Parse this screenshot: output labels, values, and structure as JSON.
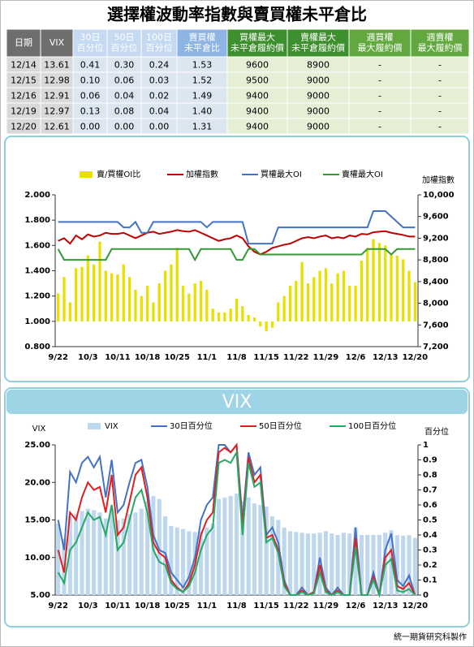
{
  "title": "選擇權波動率指數與賣買權未平倉比",
  "table": {
    "columns": [
      [
        "日期"
      ],
      [
        "VIX"
      ],
      [
        "30日",
        "百分位"
      ],
      [
        "50日",
        "百分位"
      ],
      [
        "100日",
        "百分位"
      ],
      [
        "賣買權",
        "未平倉比"
      ],
      [
        "買權最大",
        "未平倉履約價"
      ],
      [
        "賣權最大",
        "未平倉履約價"
      ],
      [
        "週買權",
        "最大履約價"
      ],
      [
        "週賣權",
        "最大履約價"
      ]
    ],
    "rows": [
      [
        "12/14",
        "13.61",
        "0.41",
        "0.30",
        "0.24",
        "1.53",
        "9600",
        "8900",
        "-",
        "-"
      ],
      [
        "12/15",
        "12.98",
        "0.10",
        "0.06",
        "0.03",
        "1.52",
        "9500",
        "9000",
        "-",
        "-"
      ],
      [
        "12/16",
        "12.91",
        "0.06",
        "0.04",
        "0.02",
        "1.49",
        "9400",
        "9000",
        "-",
        "-"
      ],
      [
        "12/19",
        "12.97",
        "0.13",
        "0.08",
        "0.04",
        "1.40",
        "9400",
        "9000",
        "-",
        "-"
      ],
      [
        "12/20",
        "12.61",
        "0.00",
        "0.00",
        "0.00",
        "1.31",
        "9400",
        "9000",
        "-",
        "-"
      ]
    ]
  },
  "chart_data": [
    {
      "type": "bar_line",
      "y2label": "加權指數",
      "categories": [
        "9/22",
        null,
        null,
        null,
        null,
        "10/3",
        null,
        null,
        null,
        null,
        "10/11",
        null,
        null,
        null,
        null,
        "10/18",
        null,
        null,
        null,
        null,
        "10/25",
        null,
        null,
        null,
        null,
        "11/1",
        null,
        null,
        null,
        null,
        "11/8",
        null,
        null,
        null,
        null,
        "11/15",
        null,
        null,
        null,
        null,
        "11/22",
        null,
        null,
        null,
        null,
        "11/29",
        null,
        null,
        null,
        null,
        "12/6",
        null,
        null,
        null,
        null,
        "12/13",
        null,
        null,
        null,
        null,
        "12/20"
      ],
      "bar_baseline": 1,
      "series": [
        {
          "name": "賣/買權OI比",
          "type": "bar",
          "color": "#e8e000",
          "values": [
            1.22,
            1.35,
            1.15,
            1.42,
            1.43,
            1.52,
            1.45,
            1.63,
            1.4,
            1.38,
            1.37,
            1.45,
            1.35,
            1.25,
            1.2,
            1.28,
            1.15,
            1.3,
            1.4,
            1.45,
            1.58,
            1.28,
            1.22,
            1.3,
            1.32,
            1.25,
            1.1,
            1.07,
            1.07,
            1.1,
            1.18,
            1.12,
            1.05,
            1.03,
            0.96,
            0.92,
            0.95,
            1.15,
            1.2,
            1.28,
            1.32,
            1.47,
            1.3,
            1.35,
            1.4,
            1.42,
            1.3,
            1.38,
            1.4,
            1.28,
            1.28,
            1.48,
            1.58,
            1.65,
            1.62,
            1.6,
            1.53,
            1.52,
            1.49,
            1.4,
            1.31
          ]
        },
        {
          "name": "加權指數",
          "type": "line",
          "axis": "y2",
          "color": "#c00000",
          "values": [
            9150,
            9200,
            9100,
            9250,
            9180,
            9270,
            9230,
            9250,
            9300,
            9280,
            9280,
            9300,
            9250,
            9200,
            9250,
            9300,
            9320,
            9280,
            9300,
            9320,
            9350,
            9330,
            9320,
            9350,
            9300,
            9250,
            9200,
            9150,
            9180,
            9200,
            9250,
            9200,
            9050,
            8950,
            8900,
            8950,
            9020,
            9050,
            9080,
            9100,
            9150,
            9200,
            9220,
            9200,
            9230,
            9250,
            9200,
            9220,
            9200,
            9250,
            9230,
            9280,
            9270,
            9310,
            9320,
            9330,
            9300,
            9280,
            9260,
            9230,
            9230
          ]
        },
        {
          "name": "買權最大OI",
          "type": "line",
          "axis": "y2",
          "color": "#4472c4",
          "values": [
            9500,
            9500,
            9500,
            9500,
            9500,
            9500,
            9500,
            9500,
            9500,
            9500,
            9500,
            9400,
            9400,
            9500,
            9300,
            9300,
            9500,
            9500,
            9500,
            9500,
            9500,
            9500,
            9500,
            9500,
            9500,
            9400,
            9500,
            9500,
            9500,
            9500,
            9500,
            9500,
            9100,
            9100,
            9100,
            9100,
            9100,
            9400,
            9400,
            9400,
            9400,
            9400,
            9400,
            9400,
            9400,
            9400,
            9400,
            9400,
            9400,
            9400,
            9400,
            9400,
            9400,
            9700,
            9700,
            9700,
            9600,
            9500,
            9400,
            9400,
            9400
          ]
        },
        {
          "name": "賣權最大OI",
          "type": "line",
          "axis": "y2",
          "color": "#339933",
          "values": [
            9000,
            8800,
            8800,
            8800,
            8800,
            8800,
            8800,
            8800,
            8800,
            9000,
            9000,
            9000,
            9000,
            9000,
            9000,
            9000,
            9000,
            9000,
            9000,
            9000,
            9000,
            9000,
            9000,
            8800,
            9000,
            9000,
            9000,
            9000,
            9000,
            9000,
            8800,
            8800,
            9000,
            9000,
            8900,
            8900,
            8900,
            8900,
            8900,
            8900,
            8900,
            8900,
            8900,
            8900,
            8900,
            8900,
            8900,
            8900,
            8900,
            8900,
            8900,
            8900,
            9000,
            9000,
            9000,
            9000,
            8900,
            9000,
            9000,
            9000,
            9000
          ]
        }
      ],
      "ylim": [
        0.8,
        2.0
      ],
      "yticks": [
        {
          "value": 0.8,
          "label": "0.800"
        },
        {
          "value": 1.0,
          "label": "1.000"
        },
        {
          "value": 1.2,
          "label": "1.200"
        },
        {
          "value": 1.4,
          "label": "1.400"
        },
        {
          "value": 1.6,
          "label": "1.600"
        },
        {
          "value": 1.8,
          "label": "1.800"
        },
        {
          "value": 2.0,
          "label": "2.000"
        }
      ],
      "y2lim": [
        7200,
        10000
      ],
      "y2ticks": [
        {
          "value": 7200,
          "label": "7,200"
        },
        {
          "value": 7600,
          "label": "7,600"
        },
        {
          "value": 8000,
          "label": "8,000"
        },
        {
          "value": 8400,
          "label": "8,400"
        },
        {
          "value": 8800,
          "label": "8,800"
        },
        {
          "value": 9200,
          "label": "9,200"
        },
        {
          "value": 9600,
          "label": "9,600"
        },
        {
          "value": 10000,
          "label": "10,000"
        }
      ]
    },
    {
      "type": "bar_line",
      "title": "VIX",
      "ylabel": "VIX",
      "y2label": "百分位",
      "categories": [
        "9/22",
        null,
        null,
        null,
        null,
        "10/3",
        null,
        null,
        null,
        null,
        "10/11",
        null,
        null,
        null,
        null,
        "10/18",
        null,
        null,
        null,
        null,
        "10/25",
        null,
        null,
        null,
        null,
        "11/1",
        null,
        null,
        null,
        null,
        "11/8",
        null,
        null,
        null,
        null,
        "11/15",
        null,
        null,
        null,
        null,
        "11/22",
        null,
        null,
        null,
        null,
        "11/29",
        null,
        null,
        null,
        null,
        "12/6",
        null,
        null,
        null,
        null,
        "12/13",
        null,
        null,
        null,
        null,
        "12/20"
      ],
      "bar_baseline": 5,
      "series": [
        {
          "name": "VIX",
          "type": "bar",
          "color": "#bdd7ee",
          "values": [
            14.5,
            12.5,
            15.5,
            15.8,
            16.2,
            16.5,
            16.3,
            16.0,
            15.2,
            16.5,
            15.0,
            15.2,
            15.8,
            16.0,
            16.5,
            17.5,
            18.2,
            17.8,
            15.5,
            14.2,
            14.0,
            13.8,
            13.5,
            13.4,
            13.5,
            14.0,
            14.5,
            17.8,
            18.0,
            18.2,
            18.5,
            17.5,
            18.0,
            17.2,
            17.0,
            16.8,
            15.5,
            15.0,
            14.0,
            13.5,
            13.4,
            13.3,
            13.2,
            13.2,
            13.3,
            13.5,
            13.2,
            13.0,
            13.3,
            13.2,
            14.0,
            13.0,
            13.0,
            13.0,
            13.0,
            13.3,
            13.61,
            12.98,
            12.91,
            12.97,
            12.61
          ]
        },
        {
          "name": "30日百分位",
          "type": "line",
          "axis": "y2",
          "color": "#4472c4",
          "values": [
            0.5,
            0.3,
            0.82,
            0.75,
            0.88,
            0.92,
            0.85,
            0.92,
            0.65,
            0.9,
            0.55,
            0.6,
            0.75,
            0.88,
            0.9,
            0.72,
            0.4,
            0.3,
            0.28,
            0.15,
            0.1,
            0.05,
            0.12,
            0.25,
            0.5,
            0.6,
            0.65,
            1.0,
            1.0,
            0.95,
            1.0,
            0.5,
            0.95,
            0.8,
            0.85,
            0.4,
            0.45,
            0.35,
            0.1,
            0.0,
            0.0,
            0.05,
            0.0,
            0.02,
            0.25,
            0.05,
            0.0,
            0.05,
            0.0,
            0.0,
            0.45,
            0.0,
            0.0,
            0.15,
            0.0,
            0.3,
            0.41,
            0.1,
            0.06,
            0.13,
            0.0
          ]
        },
        {
          "name": "50日百分位",
          "type": "line",
          "axis": "y2",
          "color": "#e02020",
          "values": [
            0.3,
            0.15,
            0.55,
            0.5,
            0.65,
            0.75,
            0.7,
            0.72,
            0.55,
            0.8,
            0.4,
            0.45,
            0.62,
            0.8,
            0.85,
            0.65,
            0.35,
            0.28,
            0.25,
            0.1,
            0.05,
            0.02,
            0.08,
            0.2,
            0.4,
            0.5,
            0.55,
            0.95,
            0.98,
            0.95,
            1.0,
            0.45,
            0.92,
            0.75,
            0.8,
            0.38,
            0.4,
            0.3,
            0.08,
            0.0,
            0.0,
            0.03,
            0.0,
            0.02,
            0.2,
            0.03,
            0.0,
            0.03,
            0.0,
            0.0,
            0.38,
            0.0,
            0.0,
            0.12,
            0.0,
            0.25,
            0.3,
            0.06,
            0.04,
            0.08,
            0.0
          ]
        },
        {
          "name": "100日百分位",
          "type": "line",
          "axis": "y2",
          "color": "#22aa66",
          "values": [
            0.15,
            0.08,
            0.3,
            0.35,
            0.45,
            0.55,
            0.5,
            0.52,
            0.4,
            0.6,
            0.3,
            0.35,
            0.5,
            0.65,
            0.7,
            0.55,
            0.3,
            0.22,
            0.2,
            0.08,
            0.04,
            0.02,
            0.06,
            0.15,
            0.3,
            0.4,
            0.45,
            0.88,
            0.9,
            0.88,
            0.95,
            0.4,
            0.88,
            0.72,
            0.75,
            0.35,
            0.38,
            0.28,
            0.06,
            0.0,
            0.0,
            0.02,
            0.0,
            0.01,
            0.15,
            0.02,
            0.0,
            0.02,
            0.0,
            0.0,
            0.32,
            0.0,
            0.0,
            0.1,
            0.0,
            0.2,
            0.24,
            0.03,
            0.02,
            0.04,
            0.0
          ]
        }
      ],
      "ylim": [
        5,
        25
      ],
      "yticks": [
        {
          "value": 5,
          "label": "5.00"
        },
        {
          "value": 10,
          "label": "10.00"
        },
        {
          "value": 15,
          "label": "15.00"
        },
        {
          "value": 20,
          "label": "20.00"
        },
        {
          "value": 25,
          "label": "25.00"
        }
      ],
      "y2lim": [
        0,
        1
      ],
      "y2ticks": [
        0,
        0.1,
        0.2,
        0.3,
        0.4,
        0.5,
        0.6,
        0.7,
        0.8,
        0.9,
        1
      ]
    }
  ],
  "footer": "統一期貨研究科製作"
}
